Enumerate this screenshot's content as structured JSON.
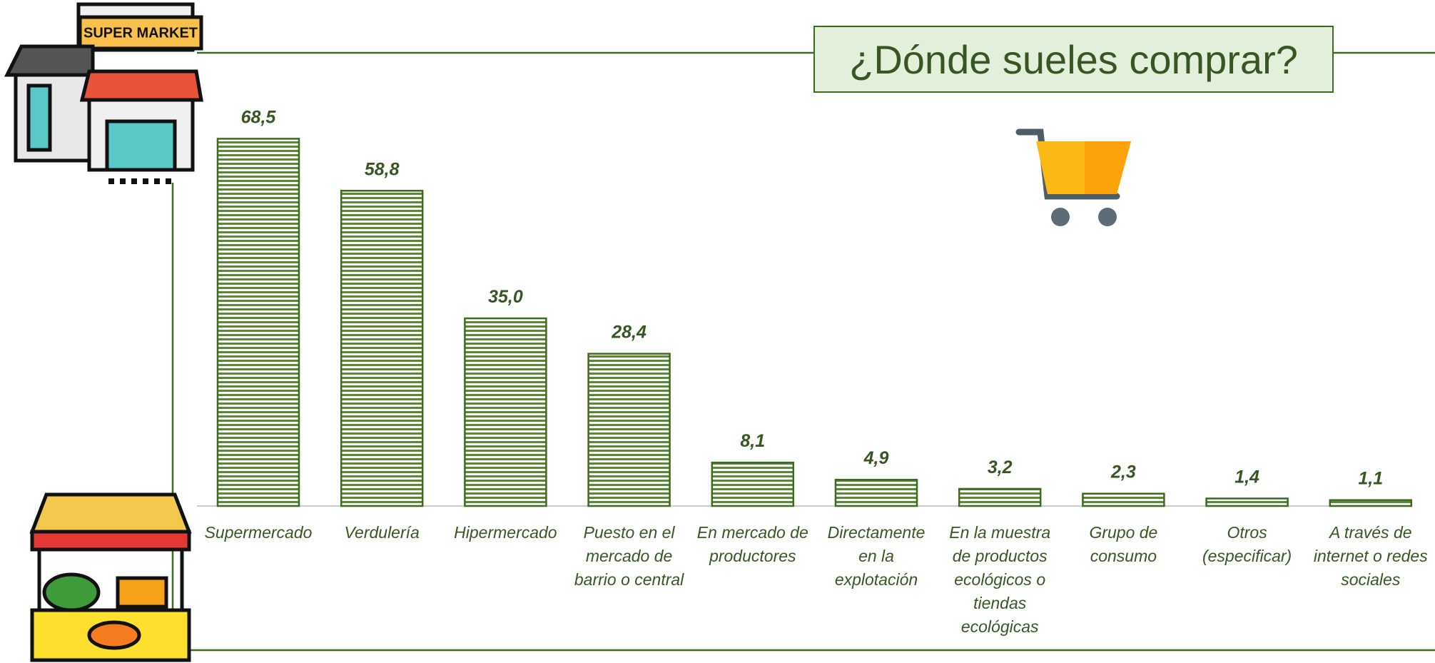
{
  "chart_data": {
    "type": "bar",
    "title": "¿Dónde sueles comprar?",
    "categories": [
      "Supermercado",
      "Verdulería",
      "Hipermercado",
      "Puesto en el mercado de barrio o central",
      "En mercado de productores",
      "Directamente en la explotación",
      "En la muestra de productos ecológicos o tiendas ecológicas",
      "Grupo de consumo",
      "Otros (especificar)",
      "A través de internet o redes sociales"
    ],
    "values": [
      68.5,
      58.8,
      35.0,
      28.4,
      8.1,
      4.9,
      3.2,
      2.3,
      1.4,
      1.1
    ],
    "value_labels": [
      "68,5",
      "58,8",
      "35,0",
      "28,4",
      "8,1",
      "4,9",
      "3,2",
      "2,3",
      "1,4",
      "1,1"
    ],
    "color": "#3d6b1f",
    "ylim": [
      0,
      80
    ]
  }
}
